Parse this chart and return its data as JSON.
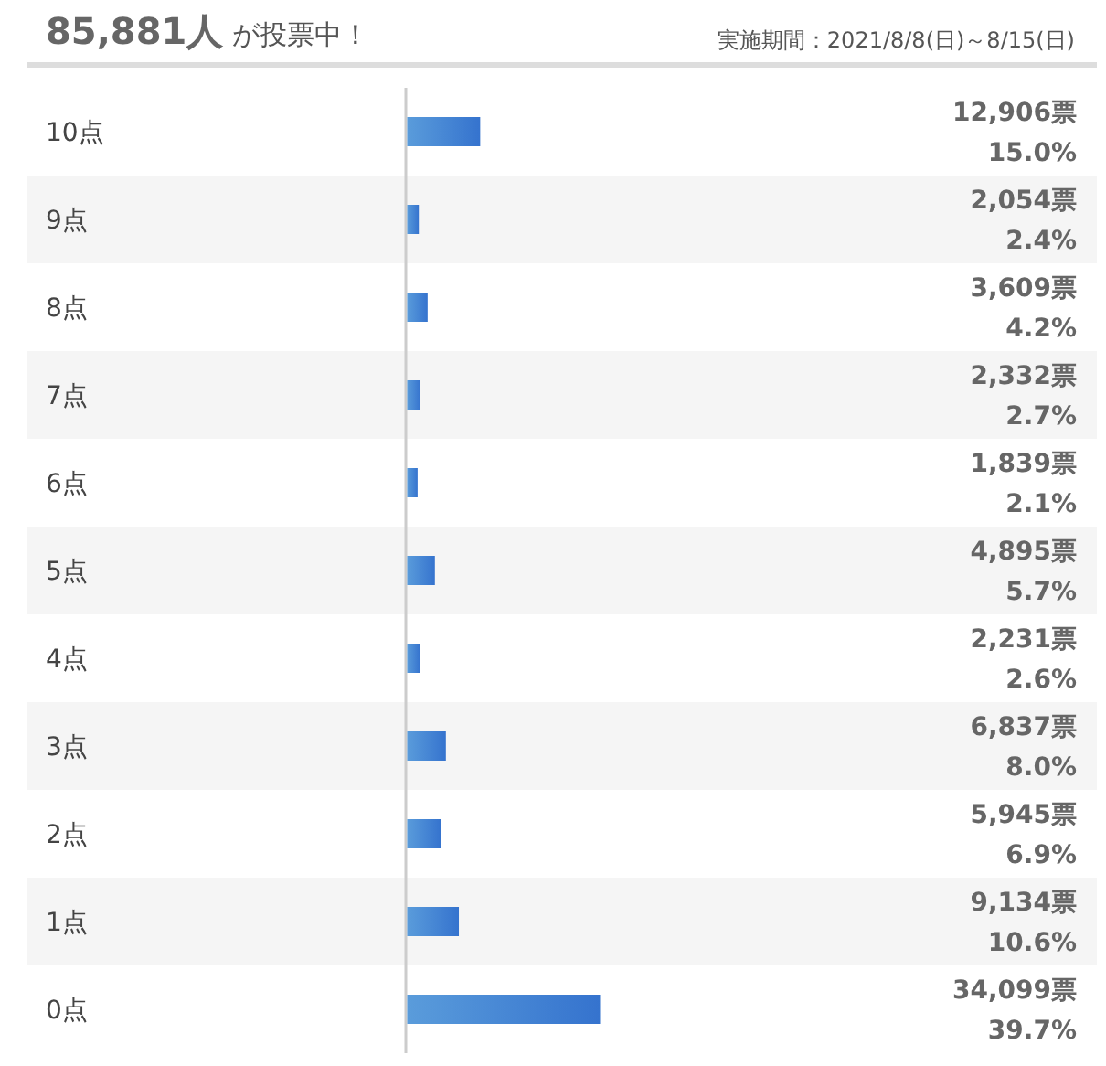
{
  "chart_data": {
    "type": "bar",
    "orientation": "horizontal",
    "title": "85,881人 が投票中！",
    "subtitle": "実施期間：2021/8/8(日)～8/15(日)",
    "categories": [
      "10点",
      "9点",
      "8点",
      "7点",
      "6点",
      "5点",
      "4点",
      "3点",
      "2点",
      "1点",
      "0点"
    ],
    "values": [
      12906,
      2054,
      3609,
      2332,
      1839,
      4895,
      2231,
      6837,
      5945,
      9134,
      34099
    ],
    "color": "#438fd6",
    "value_labels": [
      "12,906票\n15.0%",
      "2,054票\n2.4%",
      "3,609票\n4.2%",
      "2,332票\n2.7%",
      "1,839票\n2.1%",
      "4,895票\n5.7%",
      "2,231票\n2.6%",
      "6,837票\n8.0%",
      "5,945票\n6.9%",
      "9,134票\n10.6%",
      "34,099票\n39.7%"
    ]
  }
}
